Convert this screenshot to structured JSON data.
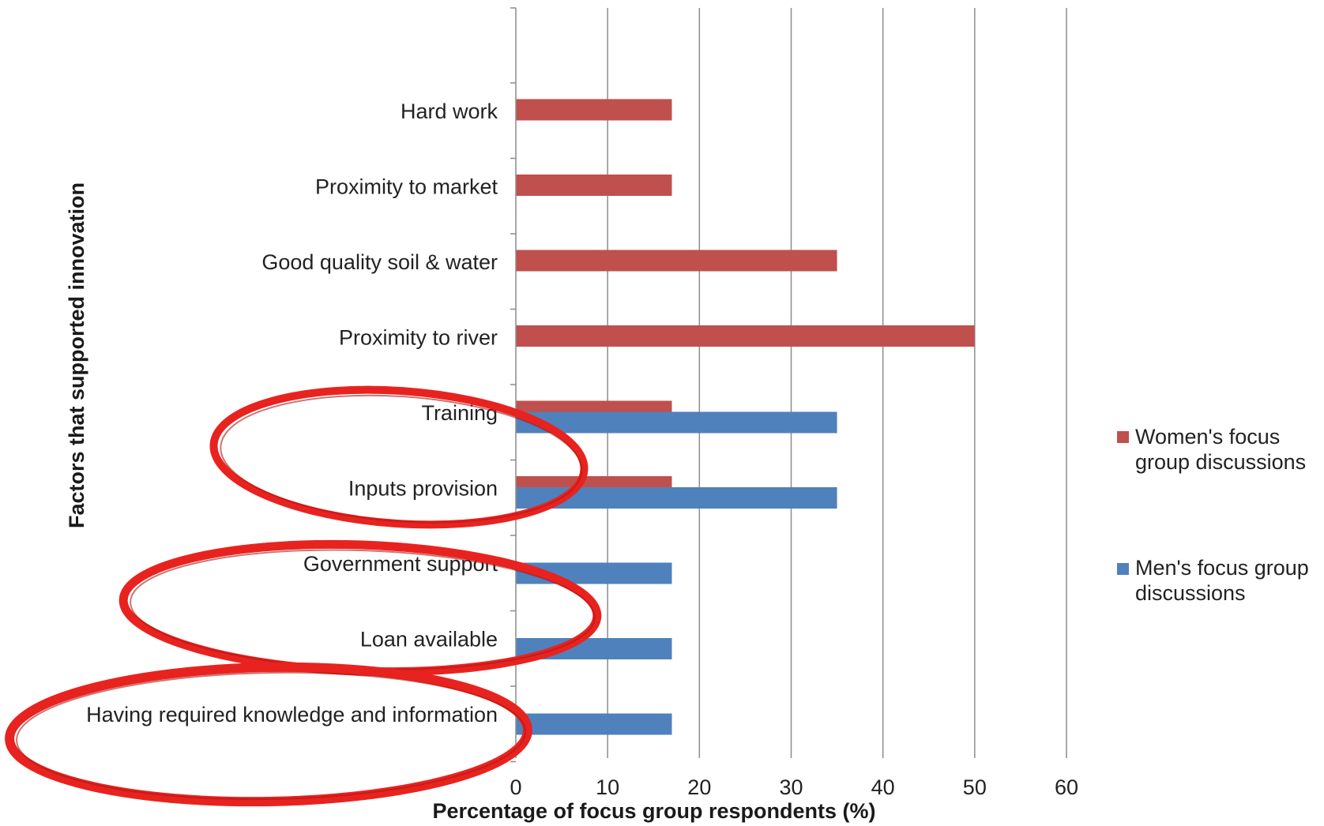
{
  "chart_data": {
    "type": "bar",
    "orientation": "horizontal",
    "xlabel": "Percentage of focus group respondents (%)",
    "ylabel": "Factors that supported innovation",
    "xlim": [
      0,
      60
    ],
    "xticks": [
      "0",
      "10",
      "20",
      "30",
      "40",
      "50",
      "60"
    ],
    "grid": true,
    "legend_position": "right",
    "categories": [
      "Hard work",
      "Proximity to market",
      "Good quality soil & water",
      "Proximity to river",
      "Training",
      "Inputs provision",
      "Government support",
      "Loan available",
      "Having required knowledge and information"
    ],
    "series": [
      {
        "name": "Women's focus group discussions",
        "legend_lines": [
          "Women's focus",
          "group discussions"
        ],
        "color": "#c0504d",
        "values": [
          17,
          17,
          35,
          50,
          17,
          17,
          0,
          0,
          0
        ]
      },
      {
        "name": "Men's focus group discussions",
        "legend_lines": [
          "Men's focus group",
          "discussions"
        ],
        "color": "#4f81bd",
        "values": [
          0,
          0,
          0,
          0,
          35,
          35,
          17,
          17,
          17
        ]
      }
    ],
    "annotations": {
      "highlight_color": "#e8231f",
      "highlighted_categories": [
        "Training",
        "Inputs provision",
        "Government support",
        "Loan available",
        "Having required knowledge and information"
      ]
    }
  }
}
